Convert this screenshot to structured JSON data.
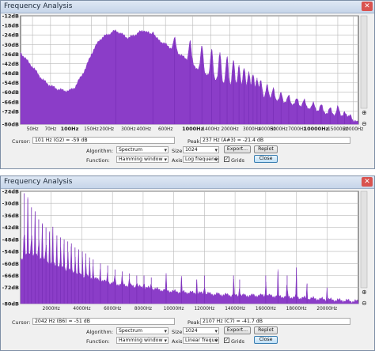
{
  "windows": [
    {
      "title": "Frequency Analysis",
      "y_ticks": [
        "-12dB",
        "-18dB",
        "-24dB",
        "-30dB",
        "-36dB",
        "-42dB",
        "-48dB",
        "-54dB",
        "-60dB",
        "-66dB",
        "-72dB",
        "-80dB"
      ],
      "x_ticks": [
        "50Hz",
        "70Hz",
        "100Hz",
        "150Hz",
        "200Hz",
        "300Hz",
        "400Hz",
        "600Hz",
        "1000Hz",
        "1400Hz",
        "2000Hz",
        "3000Hz",
        "4000Hz",
        "5000Hz",
        "7000Hz",
        "10000Hz",
        "15000Hz",
        "20000Hz"
      ],
      "bold_x": [
        "100Hz",
        "1000Hz",
        "10000Hz"
      ],
      "cursor_label": "Cursor:",
      "cursor_value": "101 Hz (G2) = -59 dB",
      "peak_label": "Peak:",
      "peak_value": "237 Hz (A#3) = -21.4 dB",
      "algorithm_label": "Algorithm:",
      "algorithm_value": "Spectrum",
      "size_label": "Size:",
      "size_value": "1024",
      "function_label": "Function:",
      "function_value": "Hamming window",
      "axis_label": "Axis:",
      "axis_value": "Log frequency",
      "grids_label": "Grids",
      "grids_checked": true,
      "export_label": "Export...",
      "replot_label": "Replot",
      "close_label": "Close"
    },
    {
      "title": "Frequency Analysis",
      "y_ticks": [
        "-24dB",
        "-30dB",
        "-36dB",
        "-42dB",
        "-48dB",
        "-54dB",
        "-60dB",
        "-66dB",
        "-72dB",
        "-80dB"
      ],
      "x_ticks": [
        "2000Hz",
        "4000Hz",
        "6000Hz",
        "8000Hz",
        "10000Hz",
        "12000Hz",
        "14000Hz",
        "16000Hz",
        "18000Hz",
        "20000Hz"
      ],
      "bold_x": [],
      "cursor_label": "Cursor:",
      "cursor_value": "2042 Hz (B6) = -51 dB",
      "peak_label": "Peak:",
      "peak_value": "2107 Hz (C7) = -41.7 dB",
      "algorithm_label": "Algorithm:",
      "algorithm_value": "Spectrum",
      "size_label": "Size:",
      "size_value": "1024",
      "function_label": "Function:",
      "function_value": "Hamming window",
      "axis_label": "Axis:",
      "axis_value": "Linear frequency",
      "grids_label": "Grids",
      "grids_checked": true,
      "export_label": "Export...",
      "replot_label": "Replot",
      "close_label": "Close"
    }
  ],
  "chart_data": [
    {
      "type": "area",
      "x_scale": "log",
      "xlim": [
        40,
        22050
      ],
      "ylim": [
        -80,
        -12
      ],
      "ylabel": "",
      "xlabel": "",
      "grid": true,
      "color": "#8b3dc8",
      "x": [
        40,
        45,
        50,
        60,
        70,
        80,
        90,
        100,
        110,
        120,
        135,
        150,
        175,
        200,
        237,
        300,
        400,
        480,
        600,
        720,
        840,
        960,
        1080,
        1200,
        1400,
        1600,
        1800,
        2000,
        2400,
        2800,
        3200,
        3600,
        4000,
        5000,
        6000,
        7000,
        8000,
        10000,
        12000,
        14000,
        16000,
        18000,
        20000,
        22050
      ],
      "y": [
        -35,
        -40,
        -44,
        -52,
        -56,
        -58,
        -59,
        -59,
        -57,
        -52,
        -45,
        -36,
        -27,
        -24,
        -21.4,
        -26,
        -21,
        -25,
        -30,
        -34,
        -38,
        -41,
        -45,
        -47,
        -51,
        -53,
        -55,
        -56,
        -58,
        -60,
        -62,
        -63,
        -64,
        -66,
        -67,
        -68,
        -69,
        -71,
        -73,
        -74,
        -75,
        -76,
        -78,
        -79
      ],
      "harmonics": [
        {
          "x": 237,
          "y": -21.4
        },
        {
          "x": 474,
          "y": -22
        },
        {
          "x": 711,
          "y": -26
        },
        {
          "x": 948,
          "y": -28
        },
        {
          "x": 1185,
          "y": -31
        },
        {
          "x": 1422,
          "y": -33
        },
        {
          "x": 1659,
          "y": -35
        },
        {
          "x": 1896,
          "y": -38
        },
        {
          "x": 2133,
          "y": -40
        },
        {
          "x": 2370,
          "y": -43
        },
        {
          "x": 2607,
          "y": -45
        },
        {
          "x": 2844,
          "y": -47
        },
        {
          "x": 3081,
          "y": -49
        },
        {
          "x": 3318,
          "y": -51
        },
        {
          "x": 3555,
          "y": -53
        },
        {
          "x": 4000,
          "y": -55
        },
        {
          "x": 4500,
          "y": -57
        },
        {
          "x": 5200,
          "y": -60
        },
        {
          "x": 6000,
          "y": -62
        },
        {
          "x": 7000,
          "y": -64
        },
        {
          "x": 8000,
          "y": -65
        },
        {
          "x": 9500,
          "y": -67
        },
        {
          "x": 11000,
          "y": -68
        },
        {
          "x": 13000,
          "y": -70
        },
        {
          "x": 15000,
          "y": -69
        },
        {
          "x": 17000,
          "y": -72
        },
        {
          "x": 19000,
          "y": -74
        }
      ]
    },
    {
      "type": "area",
      "x_scale": "linear",
      "xlim": [
        0,
        22050
      ],
      "ylim": [
        -80,
        -24
      ],
      "ylabel": "",
      "xlabel": "",
      "grid": true,
      "color": "#8b3dc8",
      "x": [
        0,
        500,
        1000,
        1500,
        2000,
        3000,
        4000,
        5000,
        6000,
        8000,
        10000,
        12000,
        14000,
        16000,
        18000,
        20000,
        22050
      ],
      "y": [
        -58,
        -55,
        -56,
        -58,
        -60,
        -63,
        -66,
        -68,
        -70,
        -72,
        -74,
        -75,
        -76,
        -76,
        -77,
        -78,
        -79
      ],
      "harmonics": [
        {
          "x": 237,
          "y": -25
        },
        {
          "x": 474,
          "y": -28
        },
        {
          "x": 711,
          "y": -32
        },
        {
          "x": 948,
          "y": -34
        },
        {
          "x": 1185,
          "y": -38
        },
        {
          "x": 1422,
          "y": -40
        },
        {
          "x": 1659,
          "y": -42
        },
        {
          "x": 1896,
          "y": -44
        },
        {
          "x": 2107,
          "y": -41.7
        },
        {
          "x": 2370,
          "y": -46
        },
        {
          "x": 2607,
          "y": -47
        },
        {
          "x": 2844,
          "y": -48
        },
        {
          "x": 3081,
          "y": -49
        },
        {
          "x": 3318,
          "y": -50
        },
        {
          "x": 3555,
          "y": -52
        },
        {
          "x": 3792,
          "y": -53
        },
        {
          "x": 4029,
          "y": -54
        },
        {
          "x": 4266,
          "y": -55
        },
        {
          "x": 4503,
          "y": -57
        },
        {
          "x": 4740,
          "y": -58
        },
        {
          "x": 5214,
          "y": -60
        },
        {
          "x": 5688,
          "y": -61
        },
        {
          "x": 6162,
          "y": -63
        },
        {
          "x": 6636,
          "y": -64
        },
        {
          "x": 7110,
          "y": -65
        },
        {
          "x": 7584,
          "y": -66
        },
        {
          "x": 8058,
          "y": -66
        },
        {
          "x": 8532,
          "y": -67
        },
        {
          "x": 9500,
          "y": -66
        },
        {
          "x": 10500,
          "y": -67
        },
        {
          "x": 11500,
          "y": -68
        },
        {
          "x": 12000,
          "y": -66
        },
        {
          "x": 13900,
          "y": -66
        },
        {
          "x": 14300,
          "y": -68
        },
        {
          "x": 16000,
          "y": -66
        },
        {
          "x": 16800,
          "y": -64
        },
        {
          "x": 17400,
          "y": -66
        },
        {
          "x": 18000,
          "y": -62
        },
        {
          "x": 18700,
          "y": -70
        },
        {
          "x": 20000,
          "y": -72
        }
      ]
    }
  ]
}
